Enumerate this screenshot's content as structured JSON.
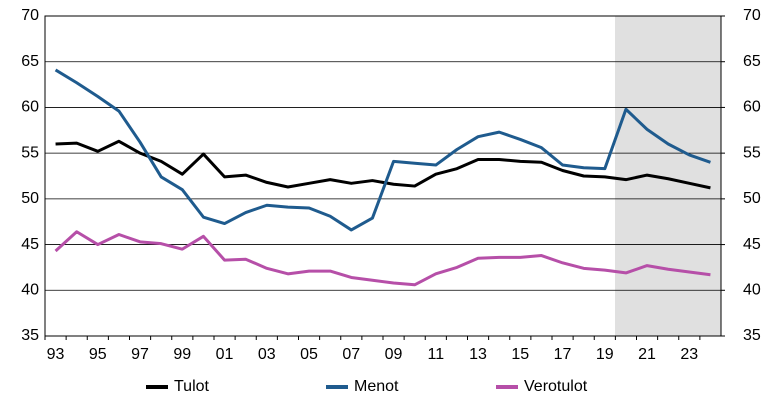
{
  "chart_data": {
    "type": "line",
    "categories": [
      "93",
      null,
      "95",
      null,
      "97",
      null,
      "99",
      null,
      "01",
      null,
      "03",
      null,
      "05",
      null,
      "07",
      null,
      "09",
      null,
      "11",
      null,
      "13",
      null,
      "15",
      null,
      "17",
      null,
      "19",
      null,
      "21",
      null,
      "23",
      null
    ],
    "series": [
      {
        "name": "Tulot",
        "color": "#000000",
        "values": [
          56.0,
          56.1,
          55.2,
          56.3,
          55.0,
          54.1,
          52.7,
          54.9,
          52.4,
          52.6,
          51.8,
          51.3,
          51.7,
          52.1,
          51.7,
          52.0,
          51.6,
          51.4,
          52.7,
          53.3,
          54.3,
          54.3,
          54.1,
          54.0,
          53.1,
          52.5,
          52.4,
          52.1,
          52.6,
          52.2,
          51.7,
          51.2
        ]
      },
      {
        "name": "Menot",
        "color": "#1f5b8e",
        "values": [
          64.1,
          62.7,
          61.2,
          59.6,
          56.2,
          52.4,
          51.0,
          48.0,
          47.3,
          48.5,
          49.3,
          49.1,
          49.0,
          48.1,
          46.6,
          47.9,
          54.1,
          53.9,
          53.7,
          55.4,
          56.8,
          57.3,
          56.5,
          55.6,
          53.7,
          53.4,
          53.3,
          59.8,
          57.6,
          56.0,
          54.8,
          54.0
        ]
      },
      {
        "name": "Verotulot",
        "color": "#b64fa8",
        "values": [
          44.3,
          46.4,
          45.0,
          46.1,
          45.3,
          45.1,
          44.5,
          45.9,
          43.3,
          43.4,
          42.4,
          41.8,
          42.1,
          42.1,
          41.4,
          41.1,
          40.8,
          40.6,
          41.8,
          42.5,
          43.5,
          43.6,
          43.6,
          43.8,
          43.0,
          42.4,
          42.2,
          41.9,
          42.7,
          42.3,
          42.0,
          41.7
        ]
      }
    ],
    "ylim": [
      35,
      70
    ],
    "yticks": [
      35,
      40,
      45,
      50,
      55,
      60,
      65,
      70
    ],
    "y2lim": [
      35,
      70
    ],
    "y2ticks": [
      35,
      40,
      45,
      50,
      55,
      60,
      65,
      70
    ],
    "grid": true,
    "legend": "bottom"
  }
}
